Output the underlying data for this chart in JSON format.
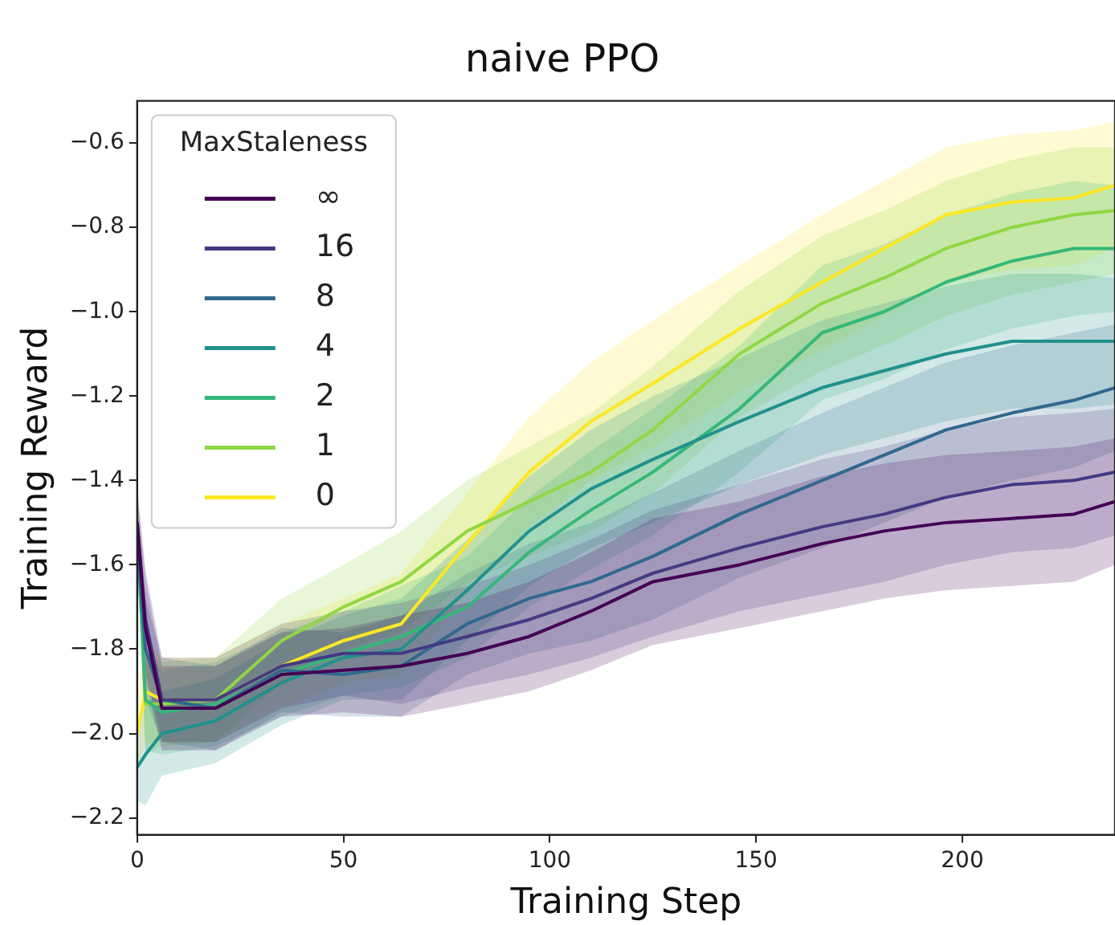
{
  "chart_data": {
    "type": "line",
    "title": "naive PPO",
    "xlabel": "Training Step",
    "ylabel": "Training Reward",
    "legend_title": "MaxStaleness",
    "legend": "top left",
    "grid": false,
    "x": [
      0,
      2,
      6,
      19,
      35,
      50,
      64,
      80,
      95,
      110,
      125,
      146,
      166,
      181,
      196,
      212,
      227,
      237
    ],
    "xlim": [
      0,
      237
    ],
    "xticks": [
      0,
      50,
      100,
      150,
      200
    ],
    "ylim": [
      -2.24,
      -0.5
    ],
    "yticks": [
      -2.2,
      {
        "value": -2,
        "label": "−2.0"
      },
      -1.8,
      -1.6,
      -1.4,
      -1.2,
      {
        "value": -1,
        "label": "−1.0"
      },
      -0.8,
      -0.6
    ],
    "series": [
      {
        "name": "∞",
        "color": "#440154",
        "values": [
          -1.5,
          -1.75,
          -1.94,
          -1.94,
          -1.86,
          -1.85,
          -1.84,
          -1.81,
          -1.77,
          -1.71,
          -1.64,
          -1.6,
          -1.55,
          -1.52,
          -1.5,
          -1.49,
          -1.48,
          -1.45
        ],
        "upper": [
          -1.42,
          -1.63,
          -1.84,
          -1.84,
          -1.76,
          -1.75,
          -1.72,
          -1.69,
          -1.64,
          -1.57,
          -1.49,
          -1.45,
          -1.39,
          -1.36,
          -1.34,
          -1.33,
          -1.32,
          -1.3
        ],
        "lower": [
          -1.58,
          -1.87,
          -2.04,
          -2.04,
          -1.96,
          -1.95,
          -1.96,
          -1.93,
          -1.9,
          -1.85,
          -1.79,
          -1.75,
          -1.71,
          -1.68,
          -1.66,
          -1.65,
          -1.64,
          -1.6
        ]
      },
      {
        "name": "16",
        "color": "#443983",
        "values": [
          -1.5,
          -1.73,
          -1.92,
          -1.92,
          -1.84,
          -1.81,
          -1.81,
          -1.77,
          -1.73,
          -1.68,
          -1.62,
          -1.56,
          -1.51,
          -1.48,
          -1.44,
          -1.41,
          -1.4,
          -1.38
        ],
        "upper": [
          -1.42,
          -1.61,
          -1.82,
          -1.82,
          -1.74,
          -1.71,
          -1.69,
          -1.65,
          -1.6,
          -1.54,
          -1.47,
          -1.41,
          -1.35,
          -1.32,
          -1.28,
          -1.25,
          -1.24,
          -1.23
        ],
        "lower": [
          -1.58,
          -1.85,
          -2.02,
          -2.02,
          -1.94,
          -1.91,
          -1.93,
          -1.89,
          -1.86,
          -1.82,
          -1.77,
          -1.71,
          -1.67,
          -1.64,
          -1.6,
          -1.57,
          -1.56,
          -1.53
        ]
      },
      {
        "name": "8",
        "color": "#31688e",
        "values": [
          -1.55,
          -1.8,
          -1.92,
          -1.94,
          -1.85,
          -1.86,
          -1.84,
          -1.74,
          -1.68,
          -1.64,
          -1.58,
          -1.48,
          -1.4,
          -1.34,
          -1.28,
          -1.24,
          -1.21,
          -1.18
        ],
        "upper": [
          -1.47,
          -1.68,
          -1.82,
          -1.84,
          -1.75,
          -1.76,
          -1.72,
          -1.62,
          -1.55,
          -1.5,
          -1.43,
          -1.33,
          -1.24,
          -1.18,
          -1.12,
          -1.08,
          -1.05,
          -1.03
        ],
        "lower": [
          -1.63,
          -1.92,
          -2.02,
          -2.04,
          -1.95,
          -1.96,
          -1.96,
          -1.86,
          -1.81,
          -1.78,
          -1.73,
          -1.63,
          -1.56,
          -1.5,
          -1.44,
          -1.4,
          -1.37,
          -1.33
        ]
      },
      {
        "name": "4",
        "color": "#21918c",
        "values": [
          -2.08,
          -2.05,
          -2.0,
          -1.97,
          -1.88,
          -1.82,
          -1.8,
          -1.66,
          -1.52,
          -1.42,
          -1.35,
          -1.26,
          -1.18,
          -1.14,
          -1.1,
          -1.07,
          -1.07,
          -1.07
        ],
        "upper": [
          -2.0,
          -1.93,
          -1.9,
          -1.87,
          -1.78,
          -1.72,
          -1.68,
          -1.54,
          -1.39,
          -1.28,
          -1.2,
          -1.11,
          -1.02,
          -0.98,
          -0.94,
          -0.91,
          -0.91,
          -0.92
        ],
        "lower": [
          -2.16,
          -2.17,
          -2.1,
          -2.07,
          -1.98,
          -1.92,
          -1.92,
          -1.78,
          -1.65,
          -1.56,
          -1.5,
          -1.41,
          -1.34,
          -1.3,
          -1.26,
          -1.23,
          -1.23,
          -1.22
        ]
      },
      {
        "name": "2",
        "color": "#35b779",
        "values": [
          -1.5,
          -1.92,
          -1.95,
          -1.93,
          -1.86,
          -1.81,
          -1.77,
          -1.7,
          -1.57,
          -1.47,
          -1.38,
          -1.23,
          -1.05,
          -1.0,
          -0.93,
          -0.88,
          -0.85,
          -0.85
        ],
        "upper": [
          -1.42,
          -1.8,
          -1.85,
          -1.83,
          -1.76,
          -1.71,
          -1.65,
          -1.58,
          -1.44,
          -1.33,
          -1.23,
          -1.08,
          -0.89,
          -0.84,
          -0.77,
          -0.72,
          -0.69,
          -0.7
        ],
        "lower": [
          -1.58,
          -2.04,
          -2.05,
          -2.03,
          -1.96,
          -1.91,
          -1.89,
          -1.82,
          -1.7,
          -1.61,
          -1.53,
          -1.38,
          -1.21,
          -1.16,
          -1.09,
          -1.04,
          -1.01,
          -1.0
        ]
      },
      {
        "name": "1",
        "color": "#90d743",
        "values": [
          -1.5,
          -1.93,
          -1.93,
          -1.92,
          -1.78,
          -1.7,
          -1.64,
          -1.52,
          -1.45,
          -1.38,
          -1.28,
          -1.1,
          -0.98,
          -0.92,
          -0.85,
          -0.8,
          -0.77,
          -0.76
        ],
        "upper": [
          -1.42,
          -1.81,
          -1.83,
          -1.82,
          -1.68,
          -1.6,
          -1.52,
          -1.4,
          -1.32,
          -1.24,
          -1.13,
          -0.95,
          -0.82,
          -0.76,
          -0.69,
          -0.64,
          -0.61,
          -0.61
        ],
        "lower": [
          -1.58,
          -2.05,
          -2.03,
          -2.02,
          -1.88,
          -1.8,
          -1.76,
          -1.64,
          -1.58,
          -1.52,
          -1.43,
          -1.25,
          -1.14,
          -1.08,
          -1.01,
          -0.96,
          -0.93,
          -0.91
        ]
      },
      {
        "name": "0",
        "color": "#fde725",
        "values": [
          -2.0,
          -1.9,
          -1.92,
          -1.92,
          -1.84,
          -1.78,
          -1.74,
          -1.55,
          -1.38,
          -1.26,
          -1.17,
          -1.04,
          -0.93,
          -0.85,
          -0.77,
          -0.74,
          -0.73,
          -0.7
        ],
        "upper": [
          -1.92,
          -1.78,
          -1.82,
          -1.82,
          -1.74,
          -1.68,
          -1.62,
          -1.43,
          -1.25,
          -1.12,
          -1.02,
          -0.89,
          -0.77,
          -0.69,
          -0.61,
          -0.58,
          -0.57,
          -0.55
        ],
        "lower": [
          -2.08,
          -2.02,
          -2.02,
          -2.02,
          -1.94,
          -1.88,
          -1.86,
          -1.67,
          -1.51,
          -1.4,
          -1.32,
          -1.19,
          -1.09,
          -1.01,
          -0.93,
          -0.9,
          -0.89,
          -0.85
        ]
      }
    ]
  }
}
